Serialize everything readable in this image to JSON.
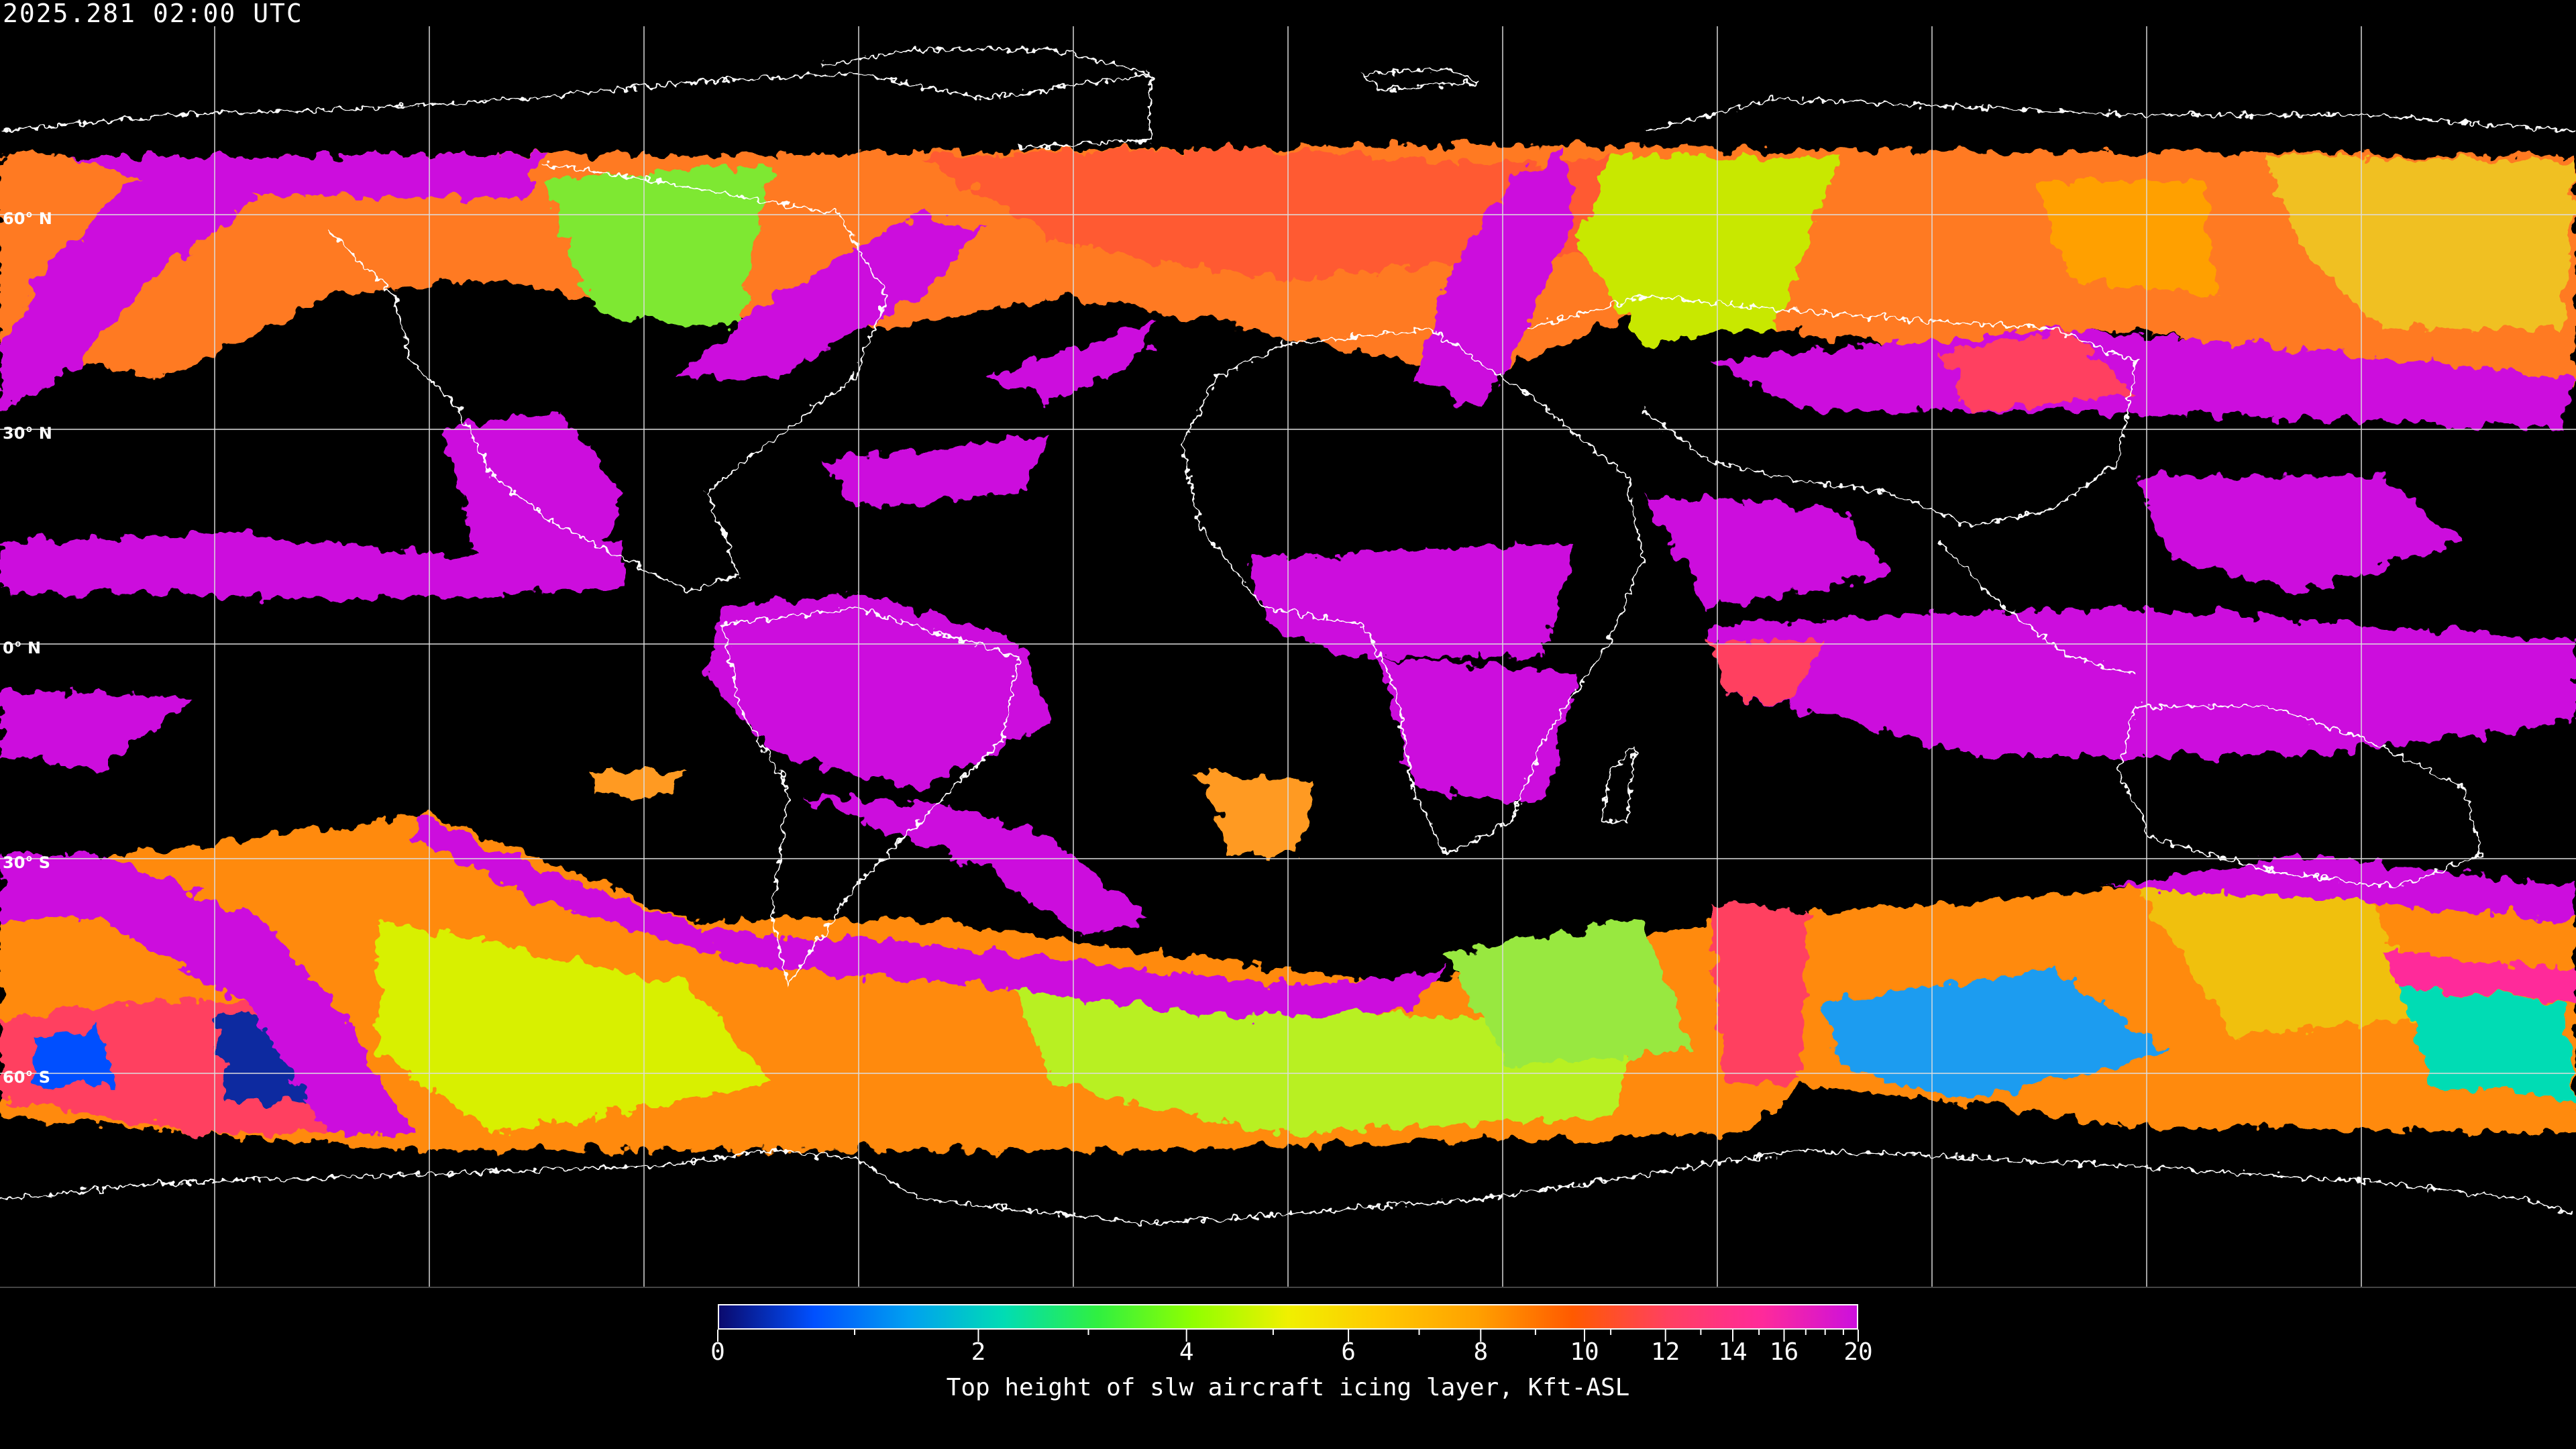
{
  "title": "2025.281 02:00 UTC",
  "lat_labels": [
    "60° N",
    "30° N",
    "0° N",
    "30° S",
    "60° S"
  ],
  "colorbar": {
    "label": "Top height of slw aircraft icing layer, Kft-ASL",
    "ticks": [
      "0",
      "2",
      "4",
      "6",
      "8",
      "10",
      "12",
      "14",
      "16",
      "20"
    ],
    "minor_ticks": [
      1,
      3,
      5,
      7,
      9,
      11,
      13,
      15,
      17,
      18,
      19
    ],
    "range": [
      0,
      20
    ],
    "colors": [
      "#0a0a6e",
      "#0050ff",
      "#00a0f0",
      "#00dcb4",
      "#30f040",
      "#90ff00",
      "#f0f000",
      "#ffc800",
      "#ffa000",
      "#ff5a00",
      "#ff4060",
      "#ff2a9a",
      "#cc10dd"
    ]
  },
  "map": {
    "projection": "equirectangular",
    "graticule_degrees": 30,
    "background": "#000000",
    "coastline_color": "#ffffff"
  }
}
